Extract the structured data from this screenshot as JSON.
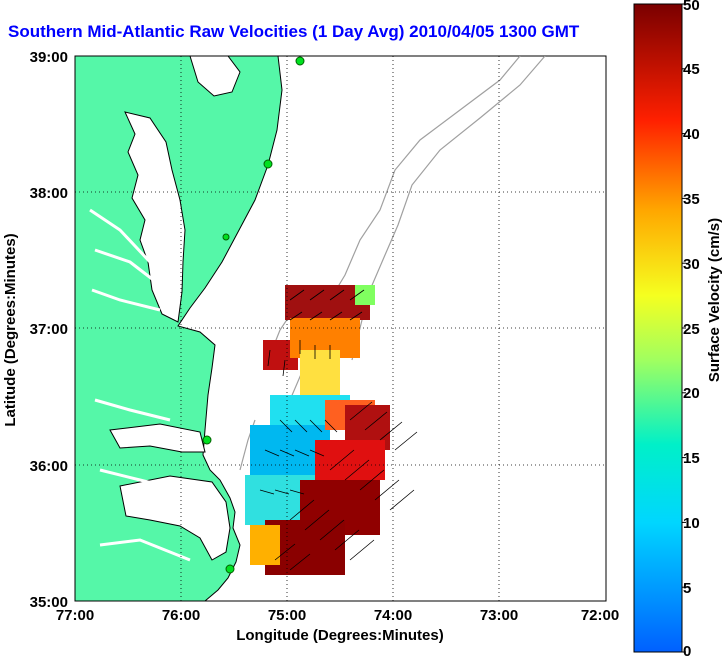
{
  "title": "Southern Mid-Atlantic Raw Velocities (1 Day Avg) 2010/04/05 1300 GMT",
  "axes": {
    "xlabel": "Longitude (Degrees:Minutes)",
    "ylabel": "Latitude (Degrees:Minutes)",
    "x_ticks": [
      "77:00",
      "76:00",
      "75:00",
      "74:00",
      "73:00",
      "72:00"
    ],
    "y_ticks": [
      "39:00",
      "38:00",
      "37:00",
      "36:00",
      "35:00"
    ],
    "x_range": [
      -77,
      -72
    ],
    "y_range": [
      35,
      39
    ]
  },
  "colorbar": {
    "label": "Surface Velocity (cm/s)",
    "ticks": [
      "0",
      "5",
      "10",
      "15",
      "20",
      "25",
      "30",
      "35",
      "40",
      "45",
      "50"
    ],
    "range": [
      0,
      50
    ]
  },
  "colors": {
    "land": "#55f7a8",
    "title": "#0000ff",
    "bathymetry": "#a0a0a0"
  }
}
